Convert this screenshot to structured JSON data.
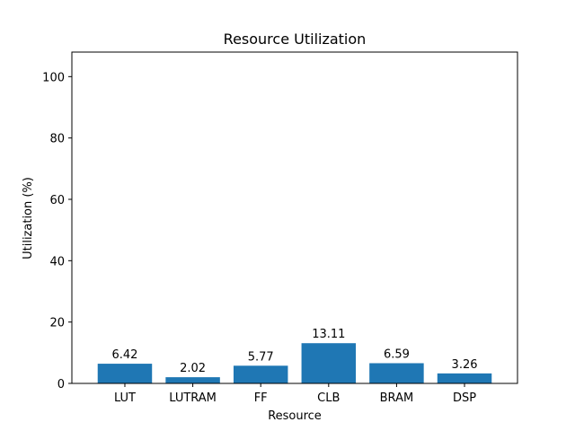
{
  "colors": {
    "bar": "#1f77b4",
    "axis": "#000000",
    "background": "#ffffff"
  },
  "chart_data": {
    "type": "bar",
    "title": "Resource Utilization",
    "xlabel": "Resource",
    "ylabel": "Utilization (%)",
    "categories": [
      "LUT",
      "LUTRAM",
      "FF",
      "CLB",
      "BRAM",
      "DSP"
    ],
    "values": [
      6.42,
      2.02,
      5.77,
      13.11,
      6.59,
      3.26
    ],
    "data_labels": [
      "6.42",
      "2.02",
      "5.77",
      "13.11",
      "6.59",
      "3.26"
    ],
    "ylim": [
      0,
      108
    ],
    "yticks": [
      0,
      20,
      40,
      60,
      80,
      100
    ],
    "grid": false,
    "legend": "none"
  }
}
